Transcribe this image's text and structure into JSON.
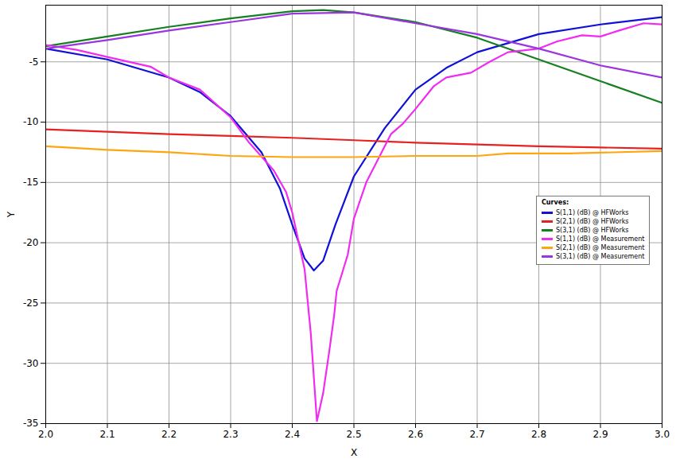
{
  "chart_data": {
    "type": "line",
    "x_label": "X",
    "y_label": "Y",
    "legend_title": "Curves:",
    "legend": "right",
    "grid": true,
    "xlim": [
      2.0,
      3.0
    ],
    "xticks": [
      {
        "value": 2,
        "label": "2.0"
      },
      2.1,
      2.2,
      2.3,
      2.4,
      2.5,
      2.6,
      2.7,
      2.8,
      2.9,
      {
        "value": 3,
        "label": "3.0"
      }
    ],
    "ylim": [
      -35,
      -0.3
    ],
    "yticks": [
      -35,
      -30,
      -25,
      -20,
      -15,
      -10,
      -5
    ],
    "series": [
      {
        "name": "S(1,1) (dB) @ HFWorks",
        "color": "#1010d8",
        "x": [
          2.0,
          2.1,
          2.2,
          2.25,
          2.3,
          2.35,
          2.38,
          2.4,
          2.42,
          2.435,
          2.45,
          2.47,
          2.5,
          2.55,
          2.6,
          2.65,
          2.7,
          2.8,
          2.9,
          3.0
        ],
        "values": [
          -3.9,
          -4.8,
          -6.3,
          -7.5,
          -9.5,
          -12.5,
          -15.5,
          -18.5,
          -21.3,
          -22.3,
          -21.5,
          -18.5,
          -14.5,
          -10.5,
          -7.3,
          -5.5,
          -4.2,
          -2.7,
          -1.9,
          -1.3
        ]
      },
      {
        "name": "S(2,1) (dB) @ HFWorks",
        "color": "#e82020",
        "x": [
          2.0,
          2.1,
          2.2,
          2.3,
          2.4,
          2.5,
          2.6,
          2.7,
          2.8,
          2.9,
          3.0
        ],
        "values": [
          -10.6,
          -10.8,
          -11.0,
          -11.15,
          -11.3,
          -11.5,
          -11.7,
          -11.85,
          -12.0,
          -12.1,
          -12.2
        ]
      },
      {
        "name": "S(3,1) (dB) @ HFWorks",
        "color": "#168020",
        "x": [
          2.0,
          2.1,
          2.2,
          2.3,
          2.4,
          2.45,
          2.5,
          2.6,
          2.7,
          2.8,
          2.9,
          3.0
        ],
        "values": [
          -3.7,
          -2.9,
          -2.1,
          -1.4,
          -0.8,
          -0.7,
          -0.9,
          -1.7,
          -3.0,
          -4.8,
          -6.6,
          -8.4
        ]
      },
      {
        "name": "S(1,1) (dB) @ Measurement",
        "color": "#f02cf0",
        "x": [
          2.0,
          2.05,
          2.1,
          2.17,
          2.2,
          2.25,
          2.3,
          2.33,
          2.37,
          2.39,
          2.4,
          2.42,
          2.43,
          2.44,
          2.45,
          2.46,
          2.468,
          2.472,
          2.49,
          2.5,
          2.52,
          2.54,
          2.56,
          2.58,
          2.6,
          2.63,
          2.65,
          2.69,
          2.72,
          2.75,
          2.8,
          2.83,
          2.87,
          2.9,
          2.93,
          2.97,
          3.0
        ],
        "values": [
          -3.6,
          -4.0,
          -4.6,
          -5.4,
          -6.3,
          -7.3,
          -9.6,
          -11.7,
          -14.0,
          -15.8,
          -17.5,
          -22.2,
          -27.5,
          -34.8,
          -32.5,
          -29.0,
          -26.0,
          -24.0,
          -21.0,
          -18.0,
          -15.0,
          -13.0,
          -11.0,
          -10.1,
          -8.9,
          -7.0,
          -6.3,
          -5.9,
          -5.0,
          -4.2,
          -3.9,
          -3.3,
          -2.8,
          -2.9,
          -2.4,
          -1.8,
          -1.9
        ]
      },
      {
        "name": "S(2,1) (dB) @ Measurement",
        "color": "#ffa510",
        "x": [
          2.0,
          2.1,
          2.2,
          2.3,
          2.4,
          2.5,
          2.6,
          2.7,
          2.75,
          2.85,
          3.0
        ],
        "values": [
          -12.0,
          -12.3,
          -12.5,
          -12.8,
          -12.9,
          -12.9,
          -12.8,
          -12.8,
          -12.6,
          -12.6,
          -12.4
        ]
      },
      {
        "name": "S(3,1) (dB) @ Measurement",
        "color": "#9a35e0",
        "x": [
          2.0,
          2.1,
          2.2,
          2.3,
          2.4,
          2.5,
          2.6,
          2.7,
          2.8,
          2.9,
          3.0
        ],
        "values": [
          -3.9,
          -3.2,
          -2.4,
          -1.7,
          -1.0,
          -0.9,
          -1.8,
          -2.7,
          -3.9,
          -5.3,
          -6.3
        ]
      }
    ]
  }
}
